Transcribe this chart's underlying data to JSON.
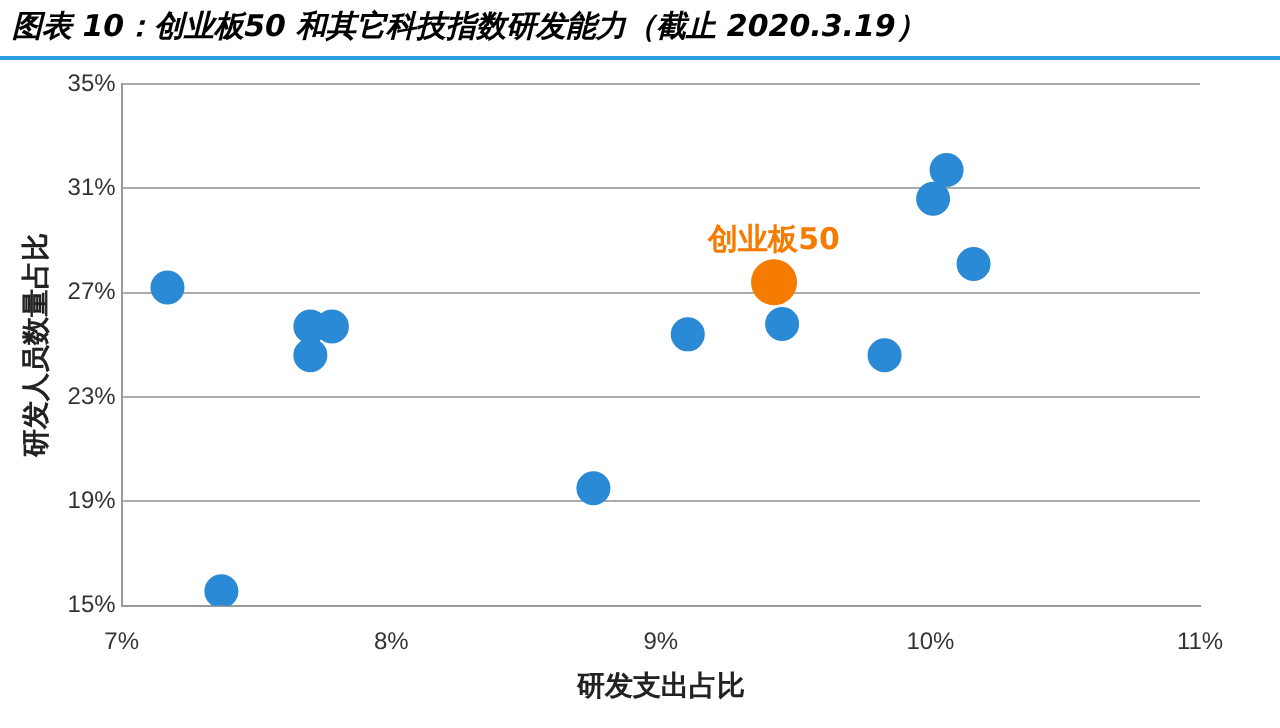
{
  "chart_data": {
    "type": "scatter",
    "title": "图表 10：创业板50 和其它科技指数研发能力（截止 2020.3.19）",
    "xlabel": "研发支出占比",
    "ylabel": "研发人员数量占比",
    "series": [
      {
        "color": "#2a8ad6",
        "x": [
          7.17,
          7.37,
          7.7,
          7.78,
          7.7,
          8.75,
          9.1,
          9.45,
          9.83,
          10.01,
          10.06,
          10.16
        ],
        "values": [
          27.2,
          15.55,
          25.7,
          25.7,
          24.6,
          19.5,
          25.4,
          25.8,
          24.6,
          30.6,
          31.7,
          28.1
        ]
      },
      {
        "name": "创业板50",
        "color": "#f57c00",
        "x": [
          9.42
        ],
        "values": [
          27.4
        ]
      }
    ],
    "xlim": [
      7,
      11
    ],
    "xticks": [
      {
        "value": 7,
        "label": "7%"
      },
      {
        "value": 8,
        "label": "8%"
      },
      {
        "value": 9,
        "label": "9%"
      },
      {
        "value": 10,
        "label": "10%"
      },
      {
        "value": 11,
        "label": "11%"
      }
    ],
    "ylim": [
      15,
      35
    ],
    "yticks": [
      {
        "value": 15,
        "label": "15%"
      },
      {
        "value": 19,
        "label": "19%"
      },
      {
        "value": 23,
        "label": "23%"
      },
      {
        "value": 27,
        "label": "27%"
      },
      {
        "value": 31,
        "label": "31%"
      },
      {
        "value": 35,
        "label": "35%"
      }
    ],
    "grid": "y",
    "legend": false,
    "marker": "circle"
  }
}
